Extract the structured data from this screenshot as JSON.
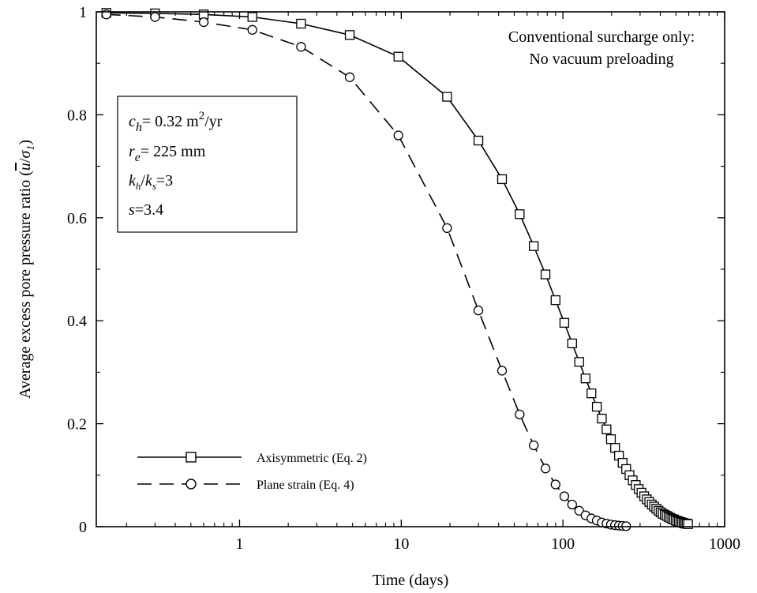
{
  "chart_data": {
    "type": "line",
    "xlabel": "Time (days)",
    "ylabel": "Average excess pore pressure ratio",
    "ylabel_symbol": {
      "u": "u",
      "sigma": "σ",
      "sub": "1"
    },
    "x_scale": "log",
    "xlim": [
      0.13,
      1000
    ],
    "ylim": [
      0,
      1
    ],
    "x_ticks": [
      {
        "value": 1,
        "label": "1"
      },
      {
        "value": 10,
        "label": "10"
      },
      {
        "value": 100,
        "label": "100"
      },
      {
        "value": 1000,
        "label": "1000"
      }
    ],
    "y_ticks": [
      {
        "value": 0,
        "label": "0"
      },
      {
        "value": 0.2,
        "label": "0.2"
      },
      {
        "value": 0.4,
        "label": "0.4"
      },
      {
        "value": 0.6,
        "label": "0.6"
      },
      {
        "value": 0.8,
        "label": "0.8"
      },
      {
        "value": 1,
        "label": "1"
      }
    ],
    "grid": false,
    "legend_position": "bottom-left",
    "annotation": [
      "Conventional surcharge only:",
      "No vacuum preloading"
    ],
    "params": {
      "ch": {
        "var": "c",
        "sub": "h",
        "rest": "= 0.32 m",
        "sup": "2",
        "tail": "/yr"
      },
      "re": {
        "var": "r",
        "sub": "e",
        "rest": "= 225 mm"
      },
      "k": {
        "var1": "k",
        "sub1": "h",
        "slash": "/",
        "var2": "k",
        "sub2": "s",
        "rest": "=3"
      },
      "s": {
        "var": "s",
        "rest": "=3.4"
      }
    },
    "series": [
      {
        "name": "Axisymmetric (Eq. 2)",
        "line": "solid",
        "marker": "square",
        "x": [
          0.15,
          0.3,
          0.6,
          1.2,
          2.4,
          4.8,
          9.6,
          19.2,
          30,
          42,
          54,
          66,
          78,
          90,
          102,
          114,
          126,
          138,
          150,
          162,
          174,
          186,
          198,
          210,
          222,
          234,
          246,
          258,
          270,
          282,
          294,
          306,
          318,
          330,
          342,
          354,
          366,
          378,
          390,
          402,
          414,
          426,
          438,
          450,
          462,
          474,
          486,
          498,
          510,
          522,
          534,
          546,
          558,
          570,
          582,
          594
        ],
        "y": [
          0.998,
          0.997,
          0.995,
          0.99,
          0.977,
          0.955,
          0.913,
          0.835,
          0.75,
          0.675,
          0.607,
          0.545,
          0.49,
          0.44,
          0.396,
          0.356,
          0.32,
          0.288,
          0.259,
          0.233,
          0.21,
          0.189,
          0.17,
          0.153,
          0.138,
          0.124,
          0.112,
          0.1,
          0.09,
          0.081,
          0.073,
          0.066,
          0.059,
          0.053,
          0.048,
          0.043,
          0.039,
          0.035,
          0.031,
          0.028,
          0.025,
          0.023,
          0.021,
          0.019,
          0.017,
          0.015,
          0.014,
          0.012,
          0.011,
          0.01,
          0.009,
          0.008,
          0.007,
          0.006,
          0.006,
          0.005
        ]
      },
      {
        "name": "Plane strain (Eq. 4)",
        "line": "dashed",
        "marker": "circle",
        "x": [
          0.15,
          0.3,
          0.6,
          1.2,
          2.4,
          4.8,
          9.6,
          19.2,
          30,
          42,
          54,
          66,
          78,
          90,
          102,
          114,
          126,
          138,
          150,
          162,
          174,
          186,
          198,
          210,
          222,
          234,
          246
        ],
        "y": [
          0.995,
          0.99,
          0.98,
          0.965,
          0.932,
          0.873,
          0.76,
          0.58,
          0.42,
          0.303,
          0.218,
          0.158,
          0.113,
          0.082,
          0.059,
          0.043,
          0.031,
          0.022,
          0.016,
          0.012,
          0.008,
          0.006,
          0.004,
          0.003,
          0.002,
          0.0015,
          0.001
        ]
      }
    ]
  }
}
